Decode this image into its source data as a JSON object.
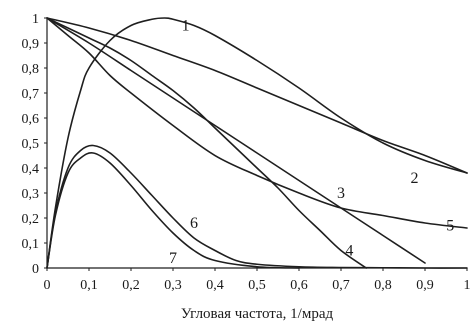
{
  "chart_data": {
    "type": "line",
    "title": "",
    "xlabel": "Угловая частота, 1/мрад",
    "ylabel": "",
    "xlim": [
      0,
      1
    ],
    "ylim": [
      0,
      1
    ],
    "grid": false,
    "legend": "none",
    "line_color": "#1f1f1f",
    "x_ticks": [
      {
        "value": 0,
        "label": "0"
      },
      {
        "value": 0.1,
        "label": "0,1"
      },
      {
        "value": 0.2,
        "label": "0,2"
      },
      {
        "value": 0.3,
        "label": "0,3"
      },
      {
        "value": 0.4,
        "label": "0,4"
      },
      {
        "value": 0.5,
        "label": "0,5"
      },
      {
        "value": 0.6,
        "label": "0,6"
      },
      {
        "value": 0.7,
        "label": "0,7"
      },
      {
        "value": 0.8,
        "label": "0,8"
      },
      {
        "value": 0.9,
        "label": "0,9"
      },
      {
        "value": 1,
        "label": "1"
      }
    ],
    "y_ticks": [
      {
        "value": 0,
        "label": "0"
      },
      {
        "value": 0.1,
        "label": "0,1"
      },
      {
        "value": 0.2,
        "label": "0,2"
      },
      {
        "value": 0.3,
        "label": "0,3"
      },
      {
        "value": 0.4,
        "label": "0,4"
      },
      {
        "value": 0.5,
        "label": "0,5"
      },
      {
        "value": 0.6,
        "label": "0,6"
      },
      {
        "value": 0.7,
        "label": "0,7"
      },
      {
        "value": 0.8,
        "label": "0,8"
      },
      {
        "value": 0.9,
        "label": "0,9"
      },
      {
        "value": 1,
        "label": "1"
      }
    ],
    "series": [
      {
        "label": "1",
        "label_at": [
          0.33,
          0.97
        ],
        "x": [
          0,
          0.02,
          0.05,
          0.08,
          0.1,
          0.15,
          0.2,
          0.25,
          0.28,
          0.3,
          0.35,
          0.4,
          0.5,
          0.6,
          0.7,
          0.8,
          0.9,
          1.0
        ],
        "y": [
          0,
          0.24,
          0.52,
          0.71,
          0.8,
          0.91,
          0.97,
          0.995,
          1.0,
          0.995,
          0.97,
          0.93,
          0.83,
          0.72,
          0.6,
          0.5,
          0.43,
          0.38
        ]
      },
      {
        "label": "2",
        "label_at": [
          0.875,
          0.36
        ],
        "x": [
          0,
          0.1,
          0.2,
          0.3,
          0.4,
          0.5,
          0.6,
          0.7,
          0.8,
          0.9,
          1.0
        ],
        "y": [
          1.0,
          0.96,
          0.91,
          0.85,
          0.79,
          0.72,
          0.65,
          0.58,
          0.51,
          0.45,
          0.38
        ]
      },
      {
        "label": "3",
        "label_at": [
          0.7,
          0.3
        ],
        "x": [
          0,
          0.1,
          0.2,
          0.3,
          0.4,
          0.5,
          0.6,
          0.7,
          0.8,
          0.9
        ],
        "y": [
          1.0,
          0.9,
          0.79,
          0.68,
          0.57,
          0.46,
          0.35,
          0.24,
          0.13,
          0.02
        ]
      },
      {
        "label": "4",
        "label_at": [
          0.72,
          0.07
        ],
        "x": [
          0,
          0.05,
          0.1,
          0.15,
          0.2,
          0.25,
          0.3,
          0.35,
          0.4,
          0.45,
          0.5,
          0.55,
          0.6,
          0.65,
          0.7,
          0.76
        ],
        "y": [
          1.0,
          0.96,
          0.92,
          0.88,
          0.83,
          0.77,
          0.71,
          0.64,
          0.56,
          0.48,
          0.4,
          0.32,
          0.23,
          0.15,
          0.07,
          0.0
        ]
      },
      {
        "label": "5",
        "label_at": [
          0.96,
          0.17
        ],
        "x": [
          0,
          0.05,
          0.1,
          0.15,
          0.2,
          0.3,
          0.4,
          0.5,
          0.6,
          0.7,
          0.8,
          0.9,
          1.0
        ],
        "y": [
          1.0,
          0.93,
          0.86,
          0.77,
          0.7,
          0.57,
          0.45,
          0.37,
          0.3,
          0.24,
          0.21,
          0.18,
          0.16
        ]
      },
      {
        "label": "6",
        "label_at": [
          0.35,
          0.18
        ],
        "x": [
          0,
          0.02,
          0.05,
          0.08,
          0.11,
          0.15,
          0.2,
          0.25,
          0.3,
          0.35,
          0.4,
          0.45,
          0.5,
          0.6,
          0.7,
          0.8,
          0.9,
          1.0
        ],
        "y": [
          0,
          0.22,
          0.4,
          0.47,
          0.49,
          0.46,
          0.38,
          0.29,
          0.2,
          0.12,
          0.07,
          0.03,
          0.015,
          0.005,
          0.002,
          0.001,
          0.0,
          0.0
        ]
      },
      {
        "label": "7",
        "label_at": [
          0.3,
          0.04
        ],
        "x": [
          0,
          0.02,
          0.05,
          0.08,
          0.11,
          0.15,
          0.2,
          0.25,
          0.3,
          0.35,
          0.4,
          0.5,
          0.6
        ],
        "y": [
          0,
          0.21,
          0.38,
          0.44,
          0.46,
          0.42,
          0.33,
          0.23,
          0.14,
          0.07,
          0.03,
          0.005,
          0.0
        ]
      }
    ]
  }
}
